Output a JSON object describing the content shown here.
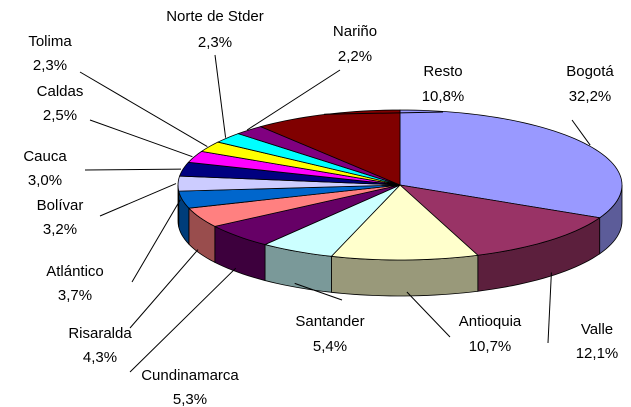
{
  "chart_data": {
    "type": "pie3d",
    "categories": [
      "Bogotá",
      "Valle",
      "Antioquia",
      "Santander",
      "Cundinamarca",
      "Risaralda",
      "Atlántico",
      "Bolívar",
      "Cauca",
      "Caldas",
      "Tolima",
      "Norte de Stder",
      "Nariño",
      "Resto"
    ],
    "values": [
      32.2,
      12.1,
      10.7,
      5.4,
      5.3,
      4.3,
      3.7,
      3.2,
      3.0,
      2.5,
      2.3,
      2.3,
      2.2,
      10.8
    ],
    "value_labels": [
      "32,2%",
      "12,1%",
      "10,7%",
      "5,4%",
      "5,3%",
      "4,3%",
      "3,7%",
      "3,2%",
      "3,0%",
      "2,5%",
      "2,3%",
      "2,3%",
      "2,2%",
      "10,8%"
    ],
    "colors": [
      "#9999ff",
      "#993366",
      "#ffffcc",
      "#ccffff",
      "#660066",
      "#ff8080",
      "#0066cc",
      "#ccccff",
      "#000080",
      "#ff00ff",
      "#ffff00",
      "#00ffff",
      "#800080",
      "#800000"
    ]
  }
}
